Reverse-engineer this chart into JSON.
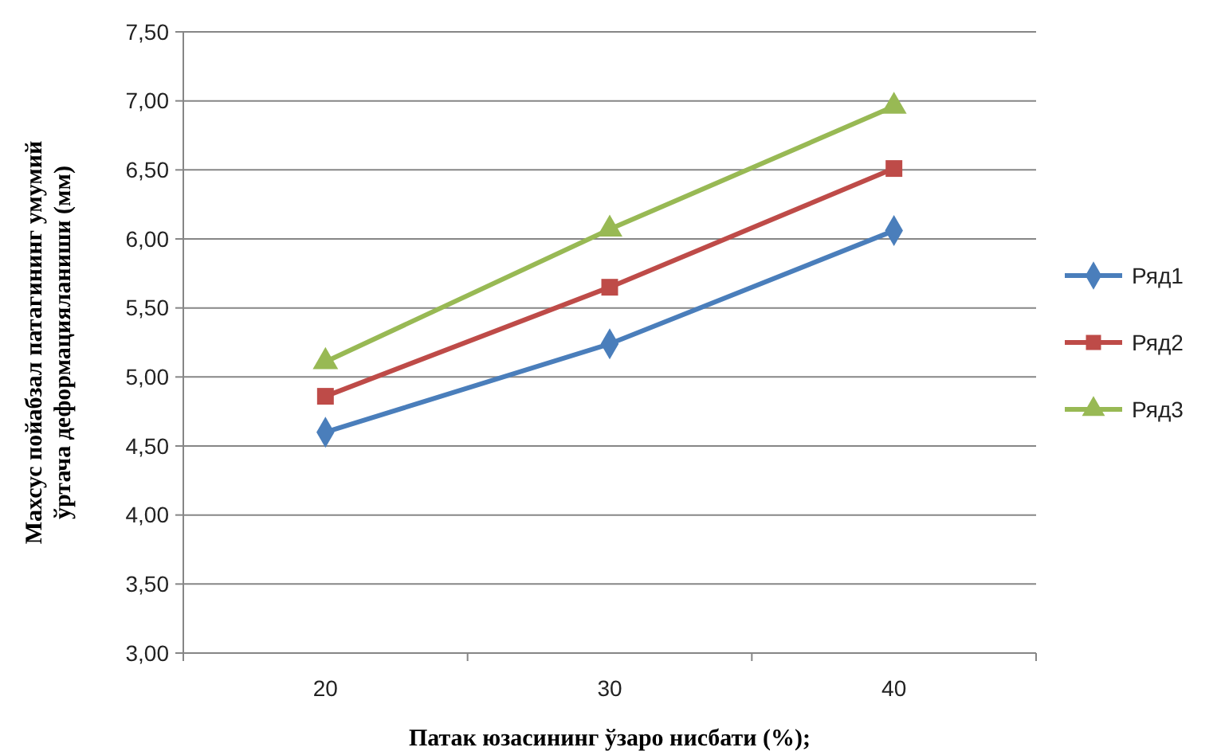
{
  "chart_data": {
    "type": "line",
    "xlabel": "Патак юзасининг ўзаро  нисбати (%);",
    "ylabel": "Махсус пойабзал патагининг умумий\nўртача деформацияланиши  (мм)",
    "categories": [
      "20",
      "30",
      "40"
    ],
    "series": [
      {
        "name": "Ряд1",
        "color": "#4a7ebb",
        "marker": "diamond",
        "values": [
          4.6,
          5.24,
          6.06
        ]
      },
      {
        "name": "Ряд2",
        "color": "#be4b48",
        "marker": "square",
        "values": [
          4.86,
          5.65,
          6.51
        ]
      },
      {
        "name": "Ряд3",
        "color": "#98b954",
        "marker": "triangle",
        "values": [
          5.11,
          6.07,
          6.96
        ]
      }
    ],
    "ylim": [
      3,
      7.5
    ],
    "yticks": [
      {
        "value": 3,
        "label": "3,00"
      },
      {
        "value": 3.5,
        "label": "3,50"
      },
      {
        "value": 4,
        "label": "4,00"
      },
      {
        "value": 4.5,
        "label": "4,50"
      },
      {
        "value": 5,
        "label": "5,00"
      },
      {
        "value": 5.5,
        "label": "5,50"
      },
      {
        "value": 6,
        "label": "6,00"
      },
      {
        "value": 6.5,
        "label": "6,50"
      },
      {
        "value": 7,
        "label": "7,00"
      },
      {
        "value": 7.5,
        "label": "7,50"
      }
    ],
    "grid": "y",
    "legend": "right",
    "line_style": "solid"
  }
}
